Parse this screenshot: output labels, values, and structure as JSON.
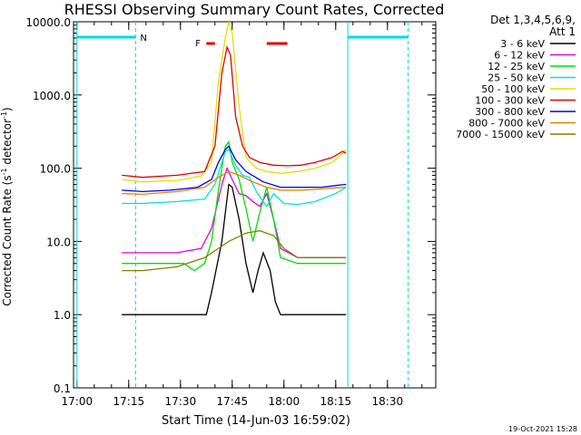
{
  "chart_data": {
    "type": "line",
    "title": "RHESSI Observing Summary Count Rates, Corrected",
    "xlabel": "Start Time (14-Jun-03 16:59:02)",
    "ylabel_main": "Corrected Count Rate (s",
    "ylabel_sup1": "-1",
    "ylabel_mid": " detector",
    "ylabel_sup2": "-1",
    "ylabel_end": ")",
    "yscale": "log",
    "ylim": [
      0.1,
      10000
    ],
    "xlim_minutes": [
      0,
      105
    ],
    "x_ticks": [
      {
        "label": "17:00",
        "min": 1
      },
      {
        "label": "17:15",
        "min": 16
      },
      {
        "label": "17:30",
        "min": 31
      },
      {
        "label": "17:45",
        "min": 46
      },
      {
        "label": "18:00",
        "min": 61
      },
      {
        "label": "18:15",
        "min": 76
      },
      {
        "label": "18:30",
        "min": 91
      }
    ],
    "y_ticks": [
      {
        "label": "0.1",
        "v": 0.1
      },
      {
        "label": "1.0",
        "v": 1
      },
      {
        "label": "10.0",
        "v": 10
      },
      {
        "label": "100.0",
        "v": 100
      },
      {
        "label": "1000.0",
        "v": 1000
      },
      {
        "label": "10000.0",
        "v": 10000
      }
    ],
    "legend_header": [
      "Det 1,3,4,5,6,9,",
      "Att 1"
    ],
    "legend_position": "right",
    "series": [
      {
        "name": "3 - 6 keV",
        "color": "#000000",
        "points": [
          [
            14,
            1
          ],
          [
            38.5,
            1
          ],
          [
            40,
            2
          ],
          [
            43,
            10
          ],
          [
            45,
            60
          ],
          [
            46,
            55
          ],
          [
            48,
            20
          ],
          [
            50,
            5
          ],
          [
            52,
            2
          ],
          [
            53.5,
            4
          ],
          [
            55,
            7
          ],
          [
            57,
            4
          ],
          [
            58.5,
            1.5
          ],
          [
            60,
            1
          ],
          [
            70,
            1
          ],
          [
            79,
            1
          ]
        ]
      },
      {
        "name": "6 - 12 keV",
        "color": "#e000e0",
        "points": [
          [
            14,
            7
          ],
          [
            30,
            7
          ],
          [
            37,
            8
          ],
          [
            40,
            15
          ],
          [
            43,
            60
          ],
          [
            44.5,
            100
          ],
          [
            46,
            70
          ],
          [
            48,
            45
          ],
          [
            50,
            42
          ],
          [
            52,
            35
          ],
          [
            54,
            30
          ],
          [
            56,
            45
          ],
          [
            58,
            20
          ],
          [
            60,
            8
          ],
          [
            65,
            6
          ],
          [
            79,
            6
          ]
        ]
      },
      {
        "name": "12 - 25 keV",
        "color": "#00e000",
        "points": [
          [
            14,
            5
          ],
          [
            25,
            5
          ],
          [
            32,
            5
          ],
          [
            35,
            4
          ],
          [
            38,
            5
          ],
          [
            40,
            10
          ],
          [
            42,
            50
          ],
          [
            44,
            200
          ],
          [
            45,
            230
          ],
          [
            46,
            120
          ],
          [
            48,
            70
          ],
          [
            50,
            28
          ],
          [
            52,
            10
          ],
          [
            54,
            25
          ],
          [
            56,
            55
          ],
          [
            58,
            20
          ],
          [
            60,
            6
          ],
          [
            65,
            5
          ],
          [
            79,
            5
          ]
        ]
      },
      {
        "name": "25 - 50 keV",
        "color": "#00e0e0",
        "points": [
          [
            14,
            33
          ],
          [
            20,
            33
          ],
          [
            30,
            35
          ],
          [
            38,
            38
          ],
          [
            41,
            60
          ],
          [
            44,
            170
          ],
          [
            45,
            180
          ],
          [
            47,
            110
          ],
          [
            49,
            80
          ],
          [
            51,
            75
          ],
          [
            53,
            48
          ],
          [
            56,
            30
          ],
          [
            58,
            45
          ],
          [
            61,
            33
          ],
          [
            65,
            32
          ],
          [
            70,
            35
          ],
          [
            76,
            45
          ],
          [
            79,
            55
          ]
        ]
      },
      {
        "name": "50 - 100 keV",
        "color": "#e0e000",
        "points": [
          [
            14,
            70
          ],
          [
            20,
            65
          ],
          [
            30,
            68
          ],
          [
            37,
            78
          ],
          [
            40,
            120
          ],
          [
            42,
            1500
          ],
          [
            44,
            6000
          ],
          [
            45,
            10000
          ],
          [
            46,
            7000
          ],
          [
            48,
            700
          ],
          [
            50,
            140
          ],
          [
            53,
            100
          ],
          [
            56,
            90
          ],
          [
            60,
            85
          ],
          [
            65,
            90
          ],
          [
            70,
            100
          ],
          [
            75,
            120
          ],
          [
            78,
            160
          ],
          [
            79,
            180
          ]
        ]
      },
      {
        "name": "100 - 300 keV",
        "color": "#e00000",
        "points": [
          [
            14,
            80
          ],
          [
            20,
            75
          ],
          [
            30,
            80
          ],
          [
            38,
            90
          ],
          [
            41,
            200
          ],
          [
            43,
            2000
          ],
          [
            44.5,
            4500
          ],
          [
            45.5,
            3500
          ],
          [
            47,
            500
          ],
          [
            49,
            200
          ],
          [
            51,
            140
          ],
          [
            54,
            120
          ],
          [
            58,
            110
          ],
          [
            62,
            108
          ],
          [
            66,
            110
          ],
          [
            70,
            120
          ],
          [
            75,
            140
          ],
          [
            78,
            170
          ],
          [
            79,
            160
          ]
        ]
      },
      {
        "name": "300 - 800 keV",
        "color": "#0000e0",
        "points": [
          [
            14,
            50
          ],
          [
            20,
            48
          ],
          [
            28,
            50
          ],
          [
            36,
            55
          ],
          [
            40,
            70
          ],
          [
            42,
            120
          ],
          [
            44,
            180
          ],
          [
            45,
            200
          ],
          [
            47,
            130
          ],
          [
            50,
            90
          ],
          [
            55,
            65
          ],
          [
            60,
            55
          ],
          [
            65,
            55
          ],
          [
            72,
            55
          ],
          [
            76,
            58
          ],
          [
            79,
            60
          ]
        ]
      },
      {
        "name": "800 - 7000 keV",
        "color": "#e08000",
        "points": [
          [
            14,
            45
          ],
          [
            20,
            44
          ],
          [
            30,
            48
          ],
          [
            38,
            55
          ],
          [
            42,
            75
          ],
          [
            45,
            90
          ],
          [
            48,
            80
          ],
          [
            52,
            65
          ],
          [
            56,
            55
          ],
          [
            60,
            50
          ],
          [
            66,
            50
          ],
          [
            72,
            52
          ],
          [
            76,
            54
          ],
          [
            79,
            55
          ]
        ]
      },
      {
        "name": "7000 - 15000 keV",
        "color": "#808000",
        "points": [
          [
            14,
            4
          ],
          [
            20,
            4
          ],
          [
            30,
            4.5
          ],
          [
            38,
            6
          ],
          [
            45,
            10
          ],
          [
            50,
            13
          ],
          [
            54,
            14
          ],
          [
            58,
            12
          ],
          [
            61,
            8
          ],
          [
            65,
            6
          ],
          [
            72,
            6
          ],
          [
            79,
            6
          ]
        ]
      }
    ],
    "annotations": {
      "segment_marker": "N",
      "flare_marker": "F",
      "vertical_lines": [
        {
          "min": 1,
          "style": "solid"
        },
        {
          "min": 18,
          "style": "dashed"
        },
        {
          "min": 79.5,
          "style": "solid"
        },
        {
          "min": 97,
          "style": "dashed"
        }
      ],
      "night_bars": [
        [
          1,
          18
        ],
        [
          79.5,
          97
        ]
      ],
      "flare_bars": [
        [
          38.5,
          41
        ],
        [
          56,
          62
        ]
      ]
    }
  },
  "timestamp": "19-Oct-2021 15:28"
}
